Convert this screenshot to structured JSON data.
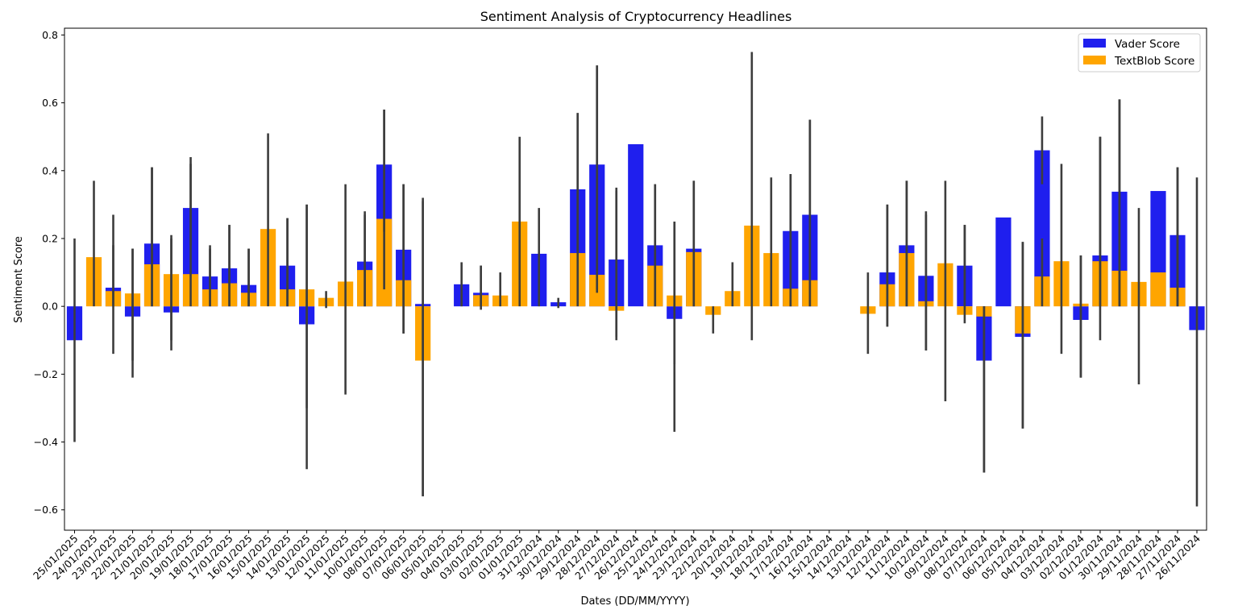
{
  "chart_data": {
    "type": "bar",
    "title": "Sentiment Analysis of Cryptocurrency Headlines",
    "xlabel": "Dates (DD/MM/YYYY)",
    "ylabel": "Sentiment Score",
    "ylim": [
      -0.66,
      0.82
    ],
    "yticks": [
      -0.6,
      -0.4,
      -0.2,
      0.0,
      0.2,
      0.4,
      0.6,
      0.8
    ],
    "ytick_labels": [
      "−0.6",
      "−0.4",
      "−0.2",
      "0.0",
      "0.2",
      "0.4",
      "0.6",
      "0.8"
    ],
    "legend_position": "top-right",
    "categories": [
      "25/01/2025",
      "24/01/2025",
      "23/01/2025",
      "22/01/2025",
      "21/01/2025",
      "20/01/2025",
      "19/01/2025",
      "18/01/2025",
      "17/01/2025",
      "16/01/2025",
      "15/01/2025",
      "14/01/2025",
      "13/01/2025",
      "12/01/2025",
      "11/01/2025",
      "10/01/2025",
      "08/01/2025",
      "07/01/2025",
      "06/01/2025",
      "05/01/2025",
      "04/01/2025",
      "03/01/2025",
      "02/01/2025",
      "01/01/2025",
      "31/12/2024",
      "30/12/2024",
      "29/12/2024",
      "28/12/2024",
      "27/12/2024",
      "26/12/2024",
      "25/12/2024",
      "24/12/2024",
      "23/12/2024",
      "22/12/2024",
      "20/12/2024",
      "19/12/2024",
      "18/12/2024",
      "17/12/2024",
      "16/12/2024",
      "15/12/2024",
      "14/12/2024",
      "13/12/2024",
      "12/12/2024",
      "11/12/2024",
      "10/12/2024",
      "09/12/2024",
      "08/12/2024",
      "07/12/2024",
      "06/12/2024",
      "05/12/2024",
      "04/12/2024",
      "03/12/2024",
      "02/12/2024",
      "01/12/2024",
      "30/11/2024",
      "29/11/2024",
      "28/11/2024",
      "27/11/2024",
      "26/11/2024"
    ],
    "series": [
      {
        "name": "Vader Score",
        "color": "#1f1fee",
        "values": [
          -0.1,
          null,
          0.055,
          -0.03,
          0.185,
          -0.018,
          0.29,
          0.088,
          0.112,
          0.063,
          null,
          0.12,
          -0.053,
          null,
          null,
          0.132,
          0.418,
          0.167,
          0.007,
          null,
          0.065,
          0.04,
          null,
          null,
          0.155,
          0.012,
          0.345,
          0.418,
          0.138,
          0.478,
          0.18,
          -0.037,
          0.17,
          null,
          null,
          null,
          null,
          0.222,
          0.27,
          null,
          null,
          null,
          0.1,
          0.18,
          0.09,
          null,
          0.12,
          -0.16,
          0.262,
          -0.09,
          0.46,
          null,
          -0.04,
          0.15,
          0.338,
          null,
          0.34,
          0.21,
          -0.07
        ],
        "ci": [
          [
            -0.4,
            0.2
          ],
          null,
          [
            -0.14,
            0.27
          ],
          [
            -0.21,
            0.17
          ],
          [
            0.0,
            0.41
          ],
          [
            -0.13,
            0.21
          ],
          [
            0.18,
            0.44
          ],
          [
            0.0,
            0.18
          ],
          [
            0.0,
            0.24
          ],
          [
            0.0,
            0.17
          ],
          null,
          [
            0.0,
            0.26
          ],
          [
            -0.48,
            0.3
          ],
          null,
          null,
          [
            0.0,
            0.28
          ],
          [
            0.22,
            0.58
          ],
          [
            -0.08,
            0.36
          ],
          [
            -0.56,
            0.32
          ],
          null,
          [
            0.0,
            0.13
          ],
          [
            0.0,
            0.12
          ],
          null,
          null,
          [
            0.0,
            0.29
          ],
          [
            -0.005,
            0.025
          ],
          [
            0.16,
            0.57
          ],
          [
            0.04,
            0.71
          ],
          [
            -0.1,
            0.35
          ],
          null,
          [
            0.0,
            0.36
          ],
          [
            -0.37,
            0.25
          ],
          [
            0.0,
            0.37
          ],
          null,
          null,
          null,
          null,
          [
            0.0,
            0.39
          ],
          [
            0.0,
            0.55
          ],
          null,
          null,
          null,
          [
            -0.06,
            0.3
          ],
          [
            0.0,
            0.37
          ],
          [
            -0.13,
            0.28
          ],
          null,
          [
            0.0,
            0.24
          ],
          [
            -0.49,
            0.0
          ],
          null,
          [
            -0.36,
            0.19
          ],
          [
            0.36,
            0.56
          ],
          null,
          [
            -0.21,
            0.15
          ],
          [
            0.0,
            0.5
          ],
          [
            0.0,
            0.61
          ],
          null,
          null,
          [
            0.0,
            0.41
          ],
          [
            -0.59,
            0.38
          ]
        ]
      },
      {
        "name": "TextBlob Score",
        "color": "#ffa500",
        "values": [
          null,
          0.145,
          0.045,
          0.038,
          0.124,
          0.095,
          0.095,
          0.05,
          0.068,
          0.04,
          0.228,
          0.05,
          0.05,
          0.025,
          0.073,
          0.107,
          0.258,
          0.077,
          -0.16,
          null,
          null,
          0.033,
          0.032,
          0.25,
          null,
          null,
          0.157,
          0.093,
          -0.013,
          null,
          0.12,
          0.032,
          0.16,
          -0.025,
          0.045,
          0.238,
          0.157,
          0.052,
          0.077,
          null,
          null,
          -0.022,
          0.065,
          0.157,
          0.015,
          0.127,
          -0.025,
          -0.03,
          null,
          -0.08,
          0.088,
          0.133,
          0.008,
          0.133,
          0.105,
          0.072,
          0.1,
          0.055,
          null
        ],
        "ci": [
          null,
          [
            0.0,
            0.37
          ],
          [
            0.0,
            0.18
          ],
          [
            -0.16,
            0.17
          ],
          [
            0.0,
            0.41
          ],
          [
            -0.1,
            0.2
          ],
          [
            0.0,
            0.42
          ],
          [
            0.0,
            0.17
          ],
          [
            0.0,
            0.24
          ],
          [
            0.0,
            0.17
          ],
          [
            0.0,
            0.51
          ],
          [
            0.0,
            0.26
          ],
          [
            -0.3,
            0.3
          ],
          [
            -0.005,
            0.045
          ],
          [
            -0.26,
            0.36
          ],
          [
            0.0,
            0.27
          ],
          [
            0.05,
            0.58
          ],
          [
            -0.08,
            0.36
          ],
          [
            -0.56,
            0.31
          ],
          null,
          null,
          [
            -0.01,
            0.12
          ],
          [
            0.0,
            0.1
          ],
          [
            0.0,
            0.5
          ],
          null,
          null,
          [
            0.0,
            0.57
          ],
          [
            0.05,
            0.71
          ],
          [
            -0.09,
            0.34
          ],
          null,
          [
            0.0,
            0.36
          ],
          [
            -0.17,
            0.25
          ],
          [
            0.0,
            0.37
          ],
          [
            -0.08,
            0.0
          ],
          [
            0.0,
            0.13
          ],
          [
            -0.1,
            0.75
          ],
          [
            0.0,
            0.38
          ],
          [
            0.0,
            0.39
          ],
          [
            0.0,
            0.55
          ],
          null,
          null,
          [
            -0.14,
            0.1
          ],
          [
            -0.06,
            0.3
          ],
          [
            0.0,
            0.37
          ],
          [
            -0.13,
            0.27
          ],
          [
            -0.28,
            0.37
          ],
          [
            -0.05,
            0.24
          ],
          [
            -0.49,
            0.0
          ],
          null,
          [
            -0.36,
            0.19
          ],
          [
            0.0,
            0.2
          ],
          [
            -0.14,
            0.42
          ],
          [
            -0.21,
            0.15
          ],
          [
            -0.1,
            0.5
          ],
          [
            0.0,
            0.61
          ],
          [
            -0.23,
            0.29
          ],
          null,
          [
            0.0,
            0.41
          ],
          null
        ]
      }
    ]
  }
}
